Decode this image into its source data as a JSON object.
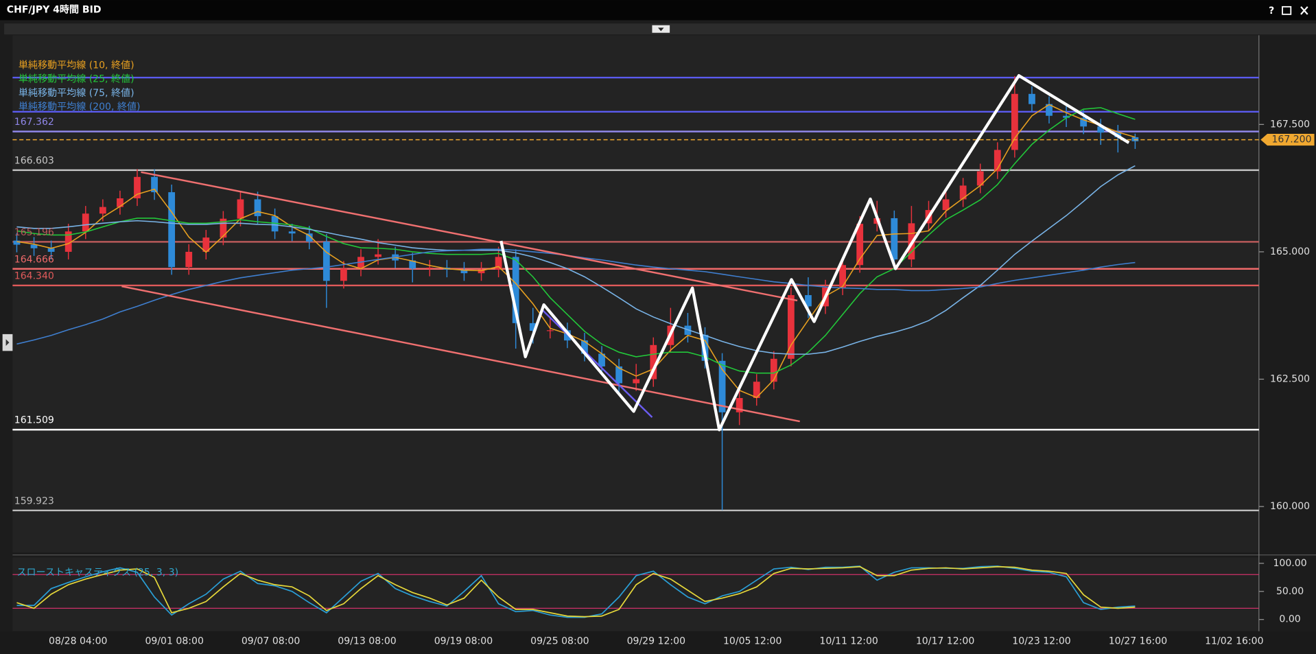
{
  "window": {
    "title": "CHF/JPY 4時間 BID",
    "help": "?"
  },
  "chart_data": [
    {
      "type": "candlestick",
      "open": [
        165.22,
        165.14,
        165.07,
        165.0,
        165.4,
        165.75,
        165.88,
        166.05,
        166.47,
        166.17,
        164.7,
        165.0,
        165.28,
        165.65,
        166.03,
        165.7,
        165.4,
        165.36,
        165.2,
        164.43,
        164.67,
        164.9,
        164.95,
        164.83,
        164.67,
        164.69,
        164.65,
        164.58,
        164.65,
        164.9,
        163.6,
        163.45,
        163.46,
        163.26,
        163.0,
        162.75,
        162.42,
        162.5,
        163.17,
        163.55,
        163.37,
        162.86,
        161.85,
        162.13,
        162.45,
        162.9,
        164.15,
        163.93,
        164.3,
        164.74,
        165.55,
        165.66,
        164.85,
        165.56,
        165.82,
        166.03,
        166.3,
        166.58,
        167.0,
        168.1,
        167.9,
        167.67,
        167.63,
        167.46,
        167.34,
        167.25
      ],
      "high": [
        165.37,
        165.29,
        165.22,
        165.55,
        165.9,
        166.03,
        166.2,
        166.62,
        166.62,
        166.32,
        165.15,
        165.43,
        165.8,
        166.18,
        166.18,
        165.85,
        165.55,
        165.51,
        165.35,
        164.82,
        165.05,
        165.25,
        165.1,
        164.98,
        164.84,
        164.84,
        164.8,
        164.8,
        165.1,
        165.05,
        163.9,
        163.7,
        163.61,
        163.41,
        163.15,
        162.9,
        162.8,
        163.32,
        163.9,
        163.8,
        163.52,
        163.01,
        162.3,
        162.6,
        163.05,
        164.3,
        164.5,
        164.45,
        164.89,
        165.7,
        166.0,
        165.81,
        165.9,
        166.0,
        166.18,
        166.45,
        166.73,
        167.15,
        168.45,
        168.25,
        168.05,
        167.9,
        167.78,
        167.61,
        167.49,
        167.32
      ],
      "low": [
        164.99,
        164.92,
        164.85,
        164.85,
        165.25,
        165.6,
        165.73,
        165.9,
        166.02,
        164.55,
        164.55,
        164.85,
        165.13,
        165.5,
        165.55,
        165.25,
        165.21,
        165.05,
        163.9,
        164.28,
        164.52,
        164.75,
        164.68,
        164.4,
        164.52,
        164.5,
        164.43,
        164.43,
        164.5,
        163.1,
        163.2,
        163.3,
        163.11,
        162.85,
        162.6,
        162.2,
        162.27,
        162.35,
        163.02,
        163.22,
        162.71,
        159.93,
        161.6,
        161.98,
        162.3,
        162.75,
        163.7,
        163.78,
        164.15,
        164.59,
        165.4,
        164.65,
        164.7,
        165.41,
        165.67,
        165.88,
        166.15,
        166.43,
        166.85,
        167.75,
        167.52,
        167.45,
        167.31,
        167.1,
        166.95,
        167.02
      ],
      "close": [
        165.14,
        165.07,
        165.0,
        165.4,
        165.75,
        165.88,
        166.05,
        166.47,
        166.17,
        164.7,
        165.0,
        165.28,
        165.65,
        166.03,
        165.7,
        165.4,
        165.36,
        165.2,
        164.43,
        164.67,
        164.9,
        164.95,
        164.83,
        164.67,
        164.69,
        164.65,
        164.58,
        164.65,
        164.9,
        163.6,
        163.45,
        163.46,
        163.26,
        163.0,
        162.75,
        162.42,
        162.5,
        163.17,
        163.55,
        163.37,
        162.86,
        161.85,
        162.13,
        162.45,
        162.9,
        164.15,
        163.93,
        164.3,
        164.74,
        165.55,
        165.66,
        164.85,
        165.56,
        165.82,
        166.03,
        166.3,
        166.58,
        167.0,
        168.1,
        167.9,
        167.67,
        167.63,
        167.46,
        167.34,
        167.25,
        167.17
      ],
      "up_color": "#e8323c",
      "down_color": "#2e8ad8",
      "series": [
        {
          "name": "単純移動平均線 (10, 終値)",
          "color": "#e8a020",
          "values": [
            165.2,
            165.15,
            165.07,
            165.16,
            165.38,
            165.68,
            165.89,
            166.13,
            166.23,
            165.78,
            165.29,
            164.99,
            165.31,
            165.65,
            165.79,
            165.71,
            165.49,
            165.32,
            164.99,
            164.77,
            164.67,
            164.84,
            164.89,
            164.82,
            164.73,
            164.67,
            164.64,
            164.63,
            164.71,
            164.38,
            163.98,
            163.5,
            163.39,
            163.24,
            163.0,
            162.72,
            162.56,
            162.7,
            163.07,
            163.36,
            163.26,
            162.69,
            162.28,
            162.14,
            162.49,
            163.17,
            163.66,
            164.13,
            164.32,
            164.86,
            165.32,
            165.35,
            165.36,
            165.41,
            165.8,
            166.05,
            166.3,
            166.63,
            167.23,
            167.67,
            167.89,
            167.73,
            167.59,
            167.48,
            167.35,
            167.25
          ]
        },
        {
          "name": "単純移動平均線 (25, 終値)",
          "color": "#22c83a",
          "values": [
            165.41,
            165.36,
            165.33,
            165.33,
            165.39,
            165.49,
            165.59,
            165.66,
            165.66,
            165.61,
            165.56,
            165.56,
            165.59,
            165.63,
            165.59,
            165.56,
            165.53,
            165.46,
            165.3,
            165.16,
            165.08,
            165.07,
            165.05,
            165.0,
            164.97,
            164.95,
            164.95,
            164.95,
            164.97,
            164.84,
            164.51,
            164.1,
            163.77,
            163.44,
            163.19,
            163.03,
            162.94,
            162.99,
            163.03,
            163.03,
            162.94,
            162.78,
            162.66,
            162.62,
            162.62,
            162.78,
            163.03,
            163.36,
            163.77,
            164.18,
            164.51,
            164.67,
            165.0,
            165.33,
            165.63,
            165.82,
            166.02,
            166.32,
            166.73,
            167.11,
            167.39,
            167.63,
            167.8,
            167.83,
            167.71,
            167.6
          ]
        },
        {
          "name": "単純移動平均線 (75, 終値)",
          "color": "#79b4e8",
          "values": [
            165.49,
            165.46,
            165.46,
            165.49,
            165.53,
            165.56,
            165.59,
            165.61,
            165.59,
            165.56,
            165.54,
            165.54,
            165.56,
            165.56,
            165.54,
            165.53,
            165.49,
            165.44,
            165.38,
            165.31,
            165.25,
            165.18,
            165.13,
            165.08,
            165.05,
            165.03,
            165.03,
            165.03,
            165.03,
            164.98,
            164.9,
            164.79,
            164.67,
            164.51,
            164.31,
            164.1,
            163.88,
            163.72,
            163.59,
            163.47,
            163.36,
            163.24,
            163.14,
            163.06,
            163.01,
            162.99,
            162.99,
            163.03,
            163.13,
            163.24,
            163.34,
            163.42,
            163.52,
            163.65,
            163.85,
            164.1,
            164.34,
            164.64,
            164.95,
            165.21,
            165.46,
            165.71,
            165.99,
            166.28,
            166.51,
            166.69
          ]
        },
        {
          "name": "単純移動平均線 (200, 終値)",
          "color": "#3f7fd0",
          "values": [
            163.19,
            163.27,
            163.36,
            163.47,
            163.57,
            163.68,
            163.82,
            163.93,
            164.05,
            164.16,
            164.26,
            164.34,
            164.42,
            164.49,
            164.54,
            164.59,
            164.64,
            164.67,
            164.7,
            164.75,
            164.8,
            164.85,
            164.9,
            164.95,
            165.0,
            165.02,
            165.03,
            165.05,
            165.05,
            165.03,
            165.0,
            164.97,
            164.93,
            164.88,
            164.84,
            164.79,
            164.74,
            164.7,
            164.67,
            164.64,
            164.61,
            164.56,
            164.51,
            164.46,
            164.41,
            164.38,
            164.34,
            164.31,
            164.29,
            164.28,
            164.26,
            164.26,
            164.24,
            164.24,
            164.26,
            164.28,
            164.31,
            164.38,
            164.44,
            164.49,
            164.54,
            164.59,
            164.64,
            164.7,
            164.75,
            164.79
          ]
        }
      ],
      "levels": [
        {
          "value": 168.42,
          "color": "#5b5bf0"
        },
        {
          "value": 167.75,
          "color": "#5b5bf0"
        },
        {
          "value": 167.362,
          "label": "167.362",
          "color": "#8f86e8"
        },
        {
          "value": 166.603,
          "label": "166.603",
          "color": "#c8c8c8"
        },
        {
          "value": 165.196,
          "label": "165.196",
          "color": "#b85a5a"
        },
        {
          "value": 164.666,
          "label": "164.666",
          "color": "#f06a6a"
        },
        {
          "value": 164.34,
          "label": "164.340",
          "color": "#e05a5a"
        },
        {
          "value": 161.509,
          "label": "161.509",
          "color": "#ffffff"
        },
        {
          "value": 159.923,
          "label": "159.923",
          "color": "#bdbdbd"
        }
      ],
      "current": {
        "value": 167.2,
        "label": "167.200",
        "color": "#f0a830"
      },
      "ylim": [
        159.1,
        169.25
      ],
      "yticks": [
        {
          "value": 167.5,
          "label": "167.500"
        },
        {
          "value": 165,
          "label": "165.000"
        },
        {
          "value": 162.5,
          "label": "162.500"
        },
        {
          "value": 160,
          "label": "160.000"
        }
      ],
      "xticks": [
        "08/28 04:00",
        "09/01 08:00",
        "09/07 08:00",
        "09/13 08:00",
        "09/19 08:00",
        "09/25 08:00",
        "09/29 12:00",
        "10/05 12:00",
        "10/11 12:00",
        "10/17 12:00",
        "10/23 12:00",
        "10/27 16:00",
        "11/02 16:00"
      ]
    },
    {
      "type": "line",
      "title": "スローストキャスティクス (25, 3, 3)",
      "series": [
        {
          "color": "#2a9fd6",
          "values": [
            25,
            25,
            55,
            66,
            76,
            85,
            92,
            84,
            40,
            8,
            28,
            45,
            72,
            86,
            64,
            60,
            50,
            30,
            12,
            40,
            68,
            82,
            55,
            42,
            32,
            24,
            50,
            78,
            28,
            14,
            16,
            8,
            4,
            4,
            10,
            40,
            78,
            86,
            62,
            40,
            28,
            42,
            50,
            70,
            90,
            93,
            89,
            93,
            93,
            95,
            70,
            84,
            92,
            92,
            91,
            91,
            94,
            95,
            91,
            86,
            84,
            76,
            30,
            18,
            22,
            24
          ]
        },
        {
          "color": "#e6d83a",
          "values": [
            30,
            20,
            45,
            62,
            72,
            80,
            88,
            90,
            75,
            12,
            20,
            32,
            58,
            82,
            70,
            62,
            58,
            42,
            16,
            28,
            55,
            78,
            62,
            48,
            38,
            26,
            38,
            70,
            40,
            18,
            18,
            12,
            6,
            5,
            6,
            18,
            62,
            82,
            72,
            52,
            32,
            38,
            46,
            58,
            82,
            91,
            90,
            91,
            92,
            94,
            78,
            78,
            88,
            91,
            92,
            90,
            92,
            94,
            93,
            88,
            86,
            82,
            44,
            22,
            20,
            22
          ]
        }
      ],
      "hlines": [
        80,
        20
      ],
      "hline_color": "#d0306a",
      "ylim": [
        -18,
        109
      ],
      "yticks": [
        {
          "value": 100,
          "label": "100.00"
        },
        {
          "value": 50,
          "label": "50.00"
        },
        {
          "value": 0,
          "label": "0.00"
        }
      ]
    }
  ]
}
